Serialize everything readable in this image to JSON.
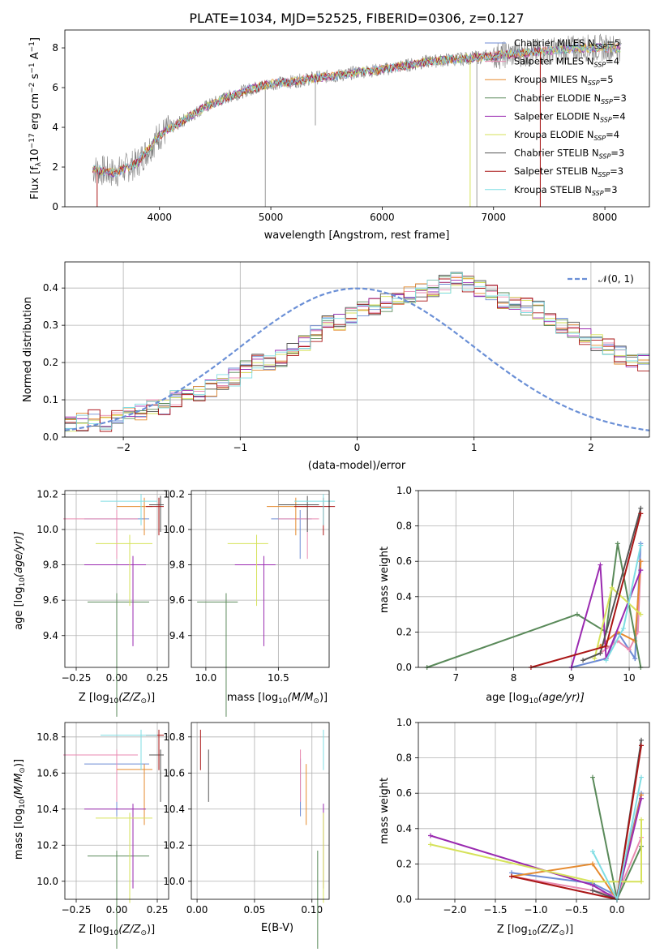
{
  "figure": {
    "title": "PLATE=1034, MJD=52525, FIBERID=0306, z=0.127"
  },
  "colors": {
    "Chabrier MILES": "#6d8bd4",
    "Salpeter MILES": "#e98ab0",
    "Kroupa MILES": "#e58a2e",
    "Chabrier ELODIE": "#5a8a5a",
    "Salpeter ELODIE": "#9a2ab0",
    "Kroupa ELODIE": "#d6e25a",
    "Chabrier STELIB": "#555555",
    "Salpeter STELIB": "#aa1616",
    "Kroupa STELIB": "#7fdde3",
    "data": "#808080",
    "normal": "#6a8fd6"
  },
  "chart_data": [
    {
      "type": "line",
      "xlabel": "wavelength [Angstrom, rest frame]",
      "ylabel": "Flux [f",
      "ylabel_sub": "λ",
      "ylabel_rest": "10",
      "ylabel_exp1": "−17",
      "ylabel_mid": " erg cm",
      "ylabel_exp2": "−2",
      "ylabel_mid2": " s",
      "ylabel_exp3": "−1",
      "ylabel_end": " A",
      "ylabel_exp4": "−1",
      "ylabel_close": "]",
      "xlim": [
        3150,
        8400
      ],
      "ylim": [
        0,
        8.9
      ],
      "xticks": [
        "4000",
        "5000",
        "6000",
        "7000",
        "8000"
      ],
      "xtick_values": [
        4000,
        5000,
        6000,
        7000,
        8000
      ],
      "yticks": [
        "0",
        "2",
        "4",
        "6",
        "8"
      ],
      "ytick_values": [
        0,
        2,
        4,
        6,
        8
      ],
      "continuum": {
        "x": [
          3400,
          3600,
          3800,
          4000,
          4200,
          4400,
          4600,
          4800,
          5000,
          5200,
          5400,
          5600,
          5800,
          6000,
          6200,
          6400,
          6600,
          6800,
          7000,
          7200,
          7400,
          7600,
          7800,
          8000,
          8150
        ],
        "y": [
          1.9,
          1.7,
          2.2,
          3.6,
          4.3,
          5.0,
          5.5,
          5.9,
          6.2,
          6.3,
          6.5,
          6.6,
          6.8,
          6.9,
          7.1,
          7.3,
          7.4,
          7.5,
          7.6,
          7.7,
          7.8,
          7.9,
          8.0,
          8.0,
          8.0
        ]
      },
      "series": [
        {
          "name": "Chabrier MILES",
          "nssp": "5"
        },
        {
          "name": "Salpeter MILES",
          "nssp": "4"
        },
        {
          "name": "Kroupa MILES",
          "nssp": "5"
        },
        {
          "name": "Chabrier ELODIE",
          "nssp": "3"
        },
        {
          "name": "Salpeter ELODIE",
          "nssp": "4"
        },
        {
          "name": "Kroupa ELODIE",
          "nssp": "4"
        },
        {
          "name": "Chabrier STELIB",
          "nssp": "3"
        },
        {
          "name": "Salpeter STELIB",
          "nssp": "3"
        },
        {
          "name": "Kroupa STELIB",
          "nssp": "3"
        }
      ],
      "legend_position": "upper right"
    },
    {
      "type": "area",
      "xlabel": "(data-model)/error",
      "ylabel": "Normed distribution",
      "xlim": [
        -2.5,
        2.5
      ],
      "ylim": [
        0,
        0.47
      ],
      "xticks": [
        "−2",
        "−1",
        "0",
        "1",
        "2"
      ],
      "xtick_values": [
        -2,
        -1,
        0,
        1,
        2
      ],
      "yticks": [
        "0.0",
        "0.1",
        "0.2",
        "0.3",
        "0.4"
      ],
      "ytick_values": [
        0,
        0.1,
        0.2,
        0.3,
        0.4
      ],
      "bin_edges_start": -2.5,
      "bin_width": 0.1,
      "base_histogram": [
        0.03,
        0.04,
        0.05,
        0.04,
        0.05,
        0.06,
        0.07,
        0.08,
        0.08,
        0.1,
        0.11,
        0.12,
        0.13,
        0.15,
        0.16,
        0.18,
        0.2,
        0.2,
        0.21,
        0.24,
        0.25,
        0.28,
        0.31,
        0.31,
        0.33,
        0.35,
        0.35,
        0.36,
        0.37,
        0.38,
        0.39,
        0.4,
        0.41,
        0.42,
        0.41,
        0.4,
        0.39,
        0.37,
        0.36,
        0.35,
        0.34,
        0.32,
        0.3,
        0.29,
        0.27,
        0.25,
        0.24,
        0.22,
        0.21,
        0.2,
        0.18,
        0.17,
        0.16,
        0.14,
        0.13,
        0.12,
        0.1,
        0.09,
        0.08,
        0.07,
        0.06,
        0.05,
        0.04,
        0.04,
        0.03,
        0.03,
        0.03,
        0.03,
        0.03,
        0.03
      ],
      "legend_label": "𝒩(0, 1)",
      "legend_position": "upper right"
    }
  ],
  "panels": {
    "age_vs_Z": {
      "xlabel": "Z [log",
      "xlabel_sub": "10",
      "xlabel_rest": "(Z/Z",
      "xlabel_sun": "⊙",
      "xlabel_end": ")]",
      "ylabel": "age  [log",
      "ylabel_sub": "10",
      "ylabel_rest": "(age/yr)]",
      "xticks": [
        "−0.25",
        "0.00",
        "0.25"
      ],
      "yticks": [
        "9.4",
        "9.6",
        "9.8",
        "10.0",
        "10.2"
      ]
    },
    "age_vs_mass": {
      "xlabel": "mass [log",
      "xlabel_sub": "10",
      "xlabel_rest": "(M/M",
      "xlabel_sun": "⊙",
      "xlabel_end": ")]",
      "xticks": [
        "10.0",
        "10.5"
      ],
      "yticks": [
        "9.4",
        "9.6",
        "9.8",
        "10.0",
        "10.2"
      ]
    },
    "weight_vs_age": {
      "xlabel": "age  [log",
      "xlabel_sub": "10",
      "xlabel_rest": "(age/yr)]",
      "ylabel": "mass weight",
      "xticks": [
        "7",
        "8",
        "9",
        "10"
      ],
      "yticks": [
        "0.0",
        "0.2",
        "0.4",
        "0.6",
        "0.8",
        "1.0"
      ]
    },
    "mass_vs_Z": {
      "xlabel": "Z [log",
      "xlabel_sub": "10",
      "xlabel_rest": "(Z/Z",
      "xlabel_sun": "⊙",
      "xlabel_end": ")]",
      "ylabel": "mass [log",
      "ylabel_sub": "10",
      "ylabel_rest": "(M/M",
      "ylabel_sun": "⊙",
      "ylabel_end": ")]",
      "xticks": [
        "−0.25",
        "0.00",
        "0.25"
      ],
      "yticks": [
        "10.0",
        "10.2",
        "10.4",
        "10.6",
        "10.8"
      ]
    },
    "mass_vs_ebv": {
      "xlabel": "E(B-V)",
      "xticks": [
        "0.00",
        "0.05",
        "0.10"
      ],
      "yticks": [
        "10.0",
        "10.2",
        "10.4",
        "10.6",
        "10.8"
      ]
    },
    "weight_vs_Z": {
      "xlabel": "Z [log",
      "xlabel_sub": "10",
      "xlabel_rest": "(Z/Z",
      "xlabel_sun": "⊙",
      "xlabel_end": ")]",
      "ylabel": "mass weight",
      "xticks": [
        "−2.0",
        "−1.5",
        "−1.0",
        "−0.5",
        "0.0"
      ],
      "yticks": [
        "0.0",
        "0.2",
        "0.4",
        "0.6",
        "0.8",
        "1.0"
      ]
    }
  },
  "fits": [
    {
      "name": "Chabrier MILES",
      "Z": [
        0.0,
        -0.2,
        0.2
      ],
      "age": [
        10.06,
        10.06,
        10.06
      ],
      "mass": [
        10.65,
        10.65,
        10.65
      ],
      "ebv": 0.09,
      "wa": [
        [
          9.0,
          0.0
        ],
        [
          9.6,
          0.05
        ],
        [
          9.8,
          0.2
        ],
        [
          10.1,
          0.05
        ],
        [
          10.2,
          0.7
        ]
      ],
      "wz": [
        [
          -1.3,
          0.15
        ],
        [
          -0.3,
          0.09
        ],
        [
          0.0,
          0.02
        ],
        [
          0.3,
          0.6
        ]
      ]
    },
    {
      "name": "Salpeter MILES",
      "Z": [
        0.0,
        -0.33,
        0.13
      ],
      "age": [
        10.06,
        10.06,
        10.06
      ],
      "mass": [
        10.7,
        10.7,
        10.7
      ],
      "ebv": 0.09,
      "wa": [
        [
          9.5,
          0.08
        ],
        [
          9.8,
          0.15
        ],
        [
          10.0,
          0.1
        ],
        [
          10.15,
          0.2
        ],
        [
          10.2,
          0.6
        ]
      ],
      "wz": [
        [
          -1.3,
          0.13
        ],
        [
          -0.3,
          0.05
        ],
        [
          0.0,
          0.02
        ],
        [
          0.3,
          0.35
        ]
      ]
    },
    {
      "name": "Kroupa MILES",
      "Z": [
        0.17,
        0.0,
        0.22
      ],
      "age": [
        10.13,
        10.13,
        10.13
      ],
      "mass": [
        10.62,
        10.62,
        10.62
      ],
      "ebv": 0.095,
      "wa": [
        [
          9.5,
          0.12
        ],
        [
          9.8,
          0.2
        ],
        [
          10.1,
          0.15
        ],
        [
          10.2,
          0.6
        ]
      ],
      "wz": [
        [
          -1.3,
          0.13
        ],
        [
          -0.3,
          0.2
        ],
        [
          0.0,
          0.0
        ],
        [
          0.3,
          0.59
        ]
      ]
    },
    {
      "name": "Chabrier ELODIE",
      "Z": [
        0.0,
        -0.18,
        0.2
      ],
      "age": [
        9.59,
        9.59,
        9.59
      ],
      "mass": [
        10.14,
        10.14,
        10.14
      ],
      "ebv": 0.105,
      "wa": [
        [
          6.5,
          0.0
        ],
        [
          9.1,
          0.3
        ],
        [
          9.6,
          0.2
        ],
        [
          9.8,
          0.7
        ],
        [
          10.2,
          0.0
        ]
      ],
      "wz": [
        [
          -0.3,
          0.69
        ],
        [
          0.0,
          0.0
        ],
        [
          0.3,
          0.3
        ]
      ]
    },
    {
      "name": "Salpeter ELODIE",
      "Z": [
        0.1,
        -0.2,
        0.18
      ],
      "age": [
        9.8,
        9.8,
        9.8
      ],
      "mass": [
        10.4,
        10.4,
        10.4
      ],
      "ebv": 0.11,
      "wa": [
        [
          9.0,
          0.0
        ],
        [
          9.5,
          0.58
        ],
        [
          9.6,
          0.05
        ],
        [
          10.2,
          0.55
        ]
      ],
      "wz": [
        [
          -2.3,
          0.36
        ],
        [
          -0.3,
          0.08
        ],
        [
          0.0,
          0.0
        ],
        [
          0.3,
          0.57
        ]
      ]
    },
    {
      "name": "Kroupa ELODIE",
      "Z": [
        0.08,
        -0.13,
        0.22
      ],
      "age": [
        9.92,
        9.92,
        9.92
      ],
      "mass": [
        10.35,
        10.35,
        10.35
      ],
      "ebv": 0.11,
      "wa": [
        [
          9.4,
          0.05
        ],
        [
          9.7,
          0.45
        ],
        [
          10.2,
          0.3
        ]
      ],
      "wz": [
        [
          -2.3,
          0.31
        ],
        [
          -0.3,
          0.1
        ],
        [
          0.3,
          0.1
        ],
        [
          0.3,
          0.45
        ]
      ]
    },
    {
      "name": "Chabrier STELIB",
      "Z": [
        0.27,
        0.2,
        0.29
      ],
      "age": [
        10.14,
        10.14,
        10.14
      ],
      "mass": [
        10.7,
        10.7,
        10.7
      ],
      "ebv": 0.01,
      "wa": [
        [
          9.2,
          0.04
        ],
        [
          9.5,
          0.08
        ],
        [
          10.2,
          0.9
        ]
      ],
      "wz": [
        [
          -0.3,
          0.05
        ],
        [
          0.0,
          0.0
        ],
        [
          0.3,
          0.9
        ]
      ]
    },
    {
      "name": "Salpeter STELIB",
      "Z": [
        0.26,
        0.18,
        0.29
      ],
      "age": [
        10.13,
        10.13,
        10.13
      ],
      "mass": [
        10.81,
        10.81,
        10.81
      ],
      "ebv": 0.003,
      "wa": [
        [
          8.3,
          0.0
        ],
        [
          9.6,
          0.12
        ],
        [
          10.2,
          0.87
        ]
      ],
      "wz": [
        [
          -1.3,
          0.13
        ],
        [
          0.0,
          0.0
        ],
        [
          0.3,
          0.87
        ]
      ]
    },
    {
      "name": "Kroupa STELIB",
      "Z": [
        0.15,
        -0.1,
        0.25
      ],
      "age": [
        10.16,
        10.16,
        10.16
      ],
      "mass": [
        10.81,
        10.81,
        10.81
      ],
      "ebv": 0.11,
      "wa": [
        [
          9.6,
          0.04
        ],
        [
          9.9,
          0.22
        ],
        [
          10.2,
          0.69
        ]
      ],
      "wz": [
        [
          -0.3,
          0.27
        ],
        [
          0.0,
          0.0
        ],
        [
          0.3,
          0.69
        ]
      ]
    }
  ]
}
